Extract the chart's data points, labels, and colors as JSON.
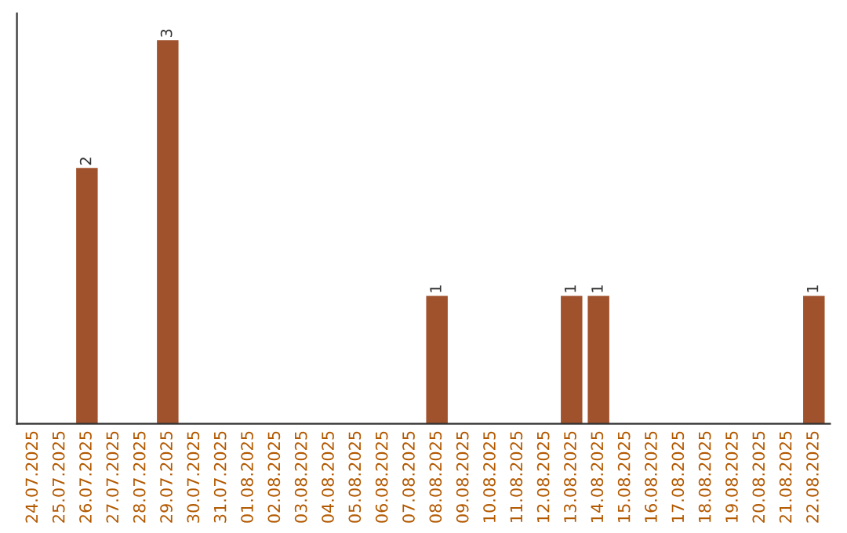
{
  "chart_data": {
    "type": "bar",
    "categories": [
      "24.07.2025",
      "25.07.2025",
      "26.07.2025",
      "27.07.2025",
      "28.07.2025",
      "29.07.2025",
      "30.07.2025",
      "31.07.2025",
      "01.08.2025",
      "02.08.2025",
      "03.08.2025",
      "04.08.2025",
      "05.08.2025",
      "06.08.2025",
      "07.08.2025",
      "08.08.2025",
      "09.08.2025",
      "10.08.2025",
      "11.08.2025",
      "12.08.2025",
      "13.08.2025",
      "14.08.2025",
      "15.08.2025",
      "16.08.2025",
      "17.08.2025",
      "18.08.2025",
      "19.08.2025",
      "20.08.2025",
      "21.08.2025",
      "22.08.2025"
    ],
    "values": [
      0,
      0,
      2,
      0,
      0,
      3,
      0,
      0,
      0,
      0,
      0,
      0,
      0,
      0,
      0,
      1,
      0,
      0,
      0,
      0,
      1,
      1,
      0,
      0,
      0,
      0,
      0,
      0,
      0,
      1
    ],
    "value_labels": [
      null,
      null,
      "2",
      null,
      null,
      "3",
      null,
      null,
      null,
      null,
      null,
      null,
      null,
      null,
      null,
      "1",
      null,
      null,
      null,
      null,
      "1",
      "1",
      null,
      null,
      null,
      null,
      null,
      null,
      null,
      "1"
    ],
    "color": "#a0522d",
    "tick_labels": "x",
    "grid": false,
    "legend": false
  }
}
